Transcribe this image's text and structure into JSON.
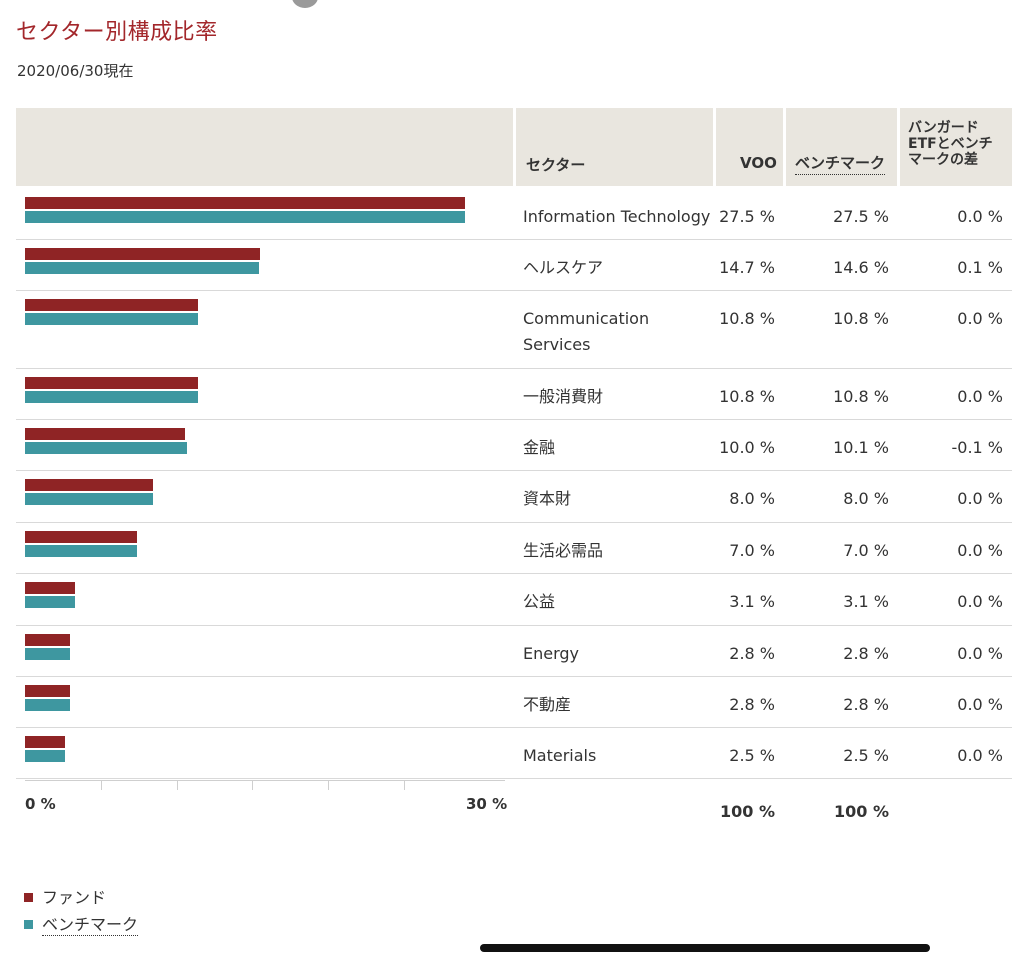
{
  "title": "セクター別構成比率",
  "as_of": "2020/06/30現在",
  "table": {
    "headers": {
      "sector": "セクター",
      "fund": "VOO",
      "benchmark": "ベンチマーク",
      "difference_lines": [
        "バンガード",
        "ETFとベンチ",
        "マークの差"
      ]
    },
    "rows": [
      {
        "sector": "Information Technology",
        "fund": "27.5 %",
        "benchmark": "27.5 %",
        "difference": "0.0 %"
      },
      {
        "sector": "ヘルスケア",
        "fund": "14.7 %",
        "benchmark": "14.6 %",
        "difference": "0.1 %"
      },
      {
        "sector": "Communication Services",
        "fund": "10.8 %",
        "benchmark": "10.8 %",
        "difference": "0.0 %"
      },
      {
        "sector": "一般消費財",
        "fund": "10.8 %",
        "benchmark": "10.8 %",
        "difference": "0.0 %"
      },
      {
        "sector": "金融",
        "fund": "10.0 %",
        "benchmark": "10.1 %",
        "difference": "-0.1 %"
      },
      {
        "sector": "資本財",
        "fund": "8.0 %",
        "benchmark": "8.0 %",
        "difference": "0.0 %"
      },
      {
        "sector": "生活必需品",
        "fund": "7.0 %",
        "benchmark": "7.0 %",
        "difference": "0.0 %"
      },
      {
        "sector": "公益",
        "fund": "3.1 %",
        "benchmark": "3.1 %",
        "difference": "0.0 %"
      },
      {
        "sector": "Energy",
        "fund": "2.8 %",
        "benchmark": "2.8 %",
        "difference": "0.0 %"
      },
      {
        "sector": "不動産",
        "fund": "2.8 %",
        "benchmark": "2.8 %",
        "difference": "0.0 %"
      },
      {
        "sector": "Materials",
        "fund": "2.5 %",
        "benchmark": "2.5 %",
        "difference": "0.0 %"
      }
    ],
    "totals": {
      "fund": "100 %",
      "benchmark": "100 %"
    }
  },
  "legend": {
    "fund": "ファンド",
    "benchmark": "ベンチマーク"
  },
  "colors": {
    "fund": "#8f2425",
    "benchmark": "#3e97a0",
    "title": "#a3272b",
    "header_bg": "#e9e6df"
  },
  "chart_data": {
    "type": "bar",
    "categories": [
      "Information Technology",
      "ヘルスケア",
      "Communication Services",
      "一般消費財",
      "金融",
      "資本財",
      "生活必需品",
      "公益",
      "Energy",
      "不動産",
      "Materials"
    ],
    "series": [
      {
        "name": "ファンド",
        "values": [
          27.5,
          14.7,
          10.8,
          10.8,
          10.0,
          8.0,
          7.0,
          3.1,
          2.8,
          2.8,
          2.5
        ]
      },
      {
        "name": "ベンチマーク",
        "values": [
          27.5,
          14.6,
          10.8,
          10.8,
          10.1,
          8.0,
          7.0,
          3.1,
          2.8,
          2.8,
          2.5
        ]
      }
    ],
    "xlim": [
      0,
      30
    ],
    "tick_labels": [
      "0 %",
      "30 %"
    ],
    "orientation": "horizontal"
  }
}
